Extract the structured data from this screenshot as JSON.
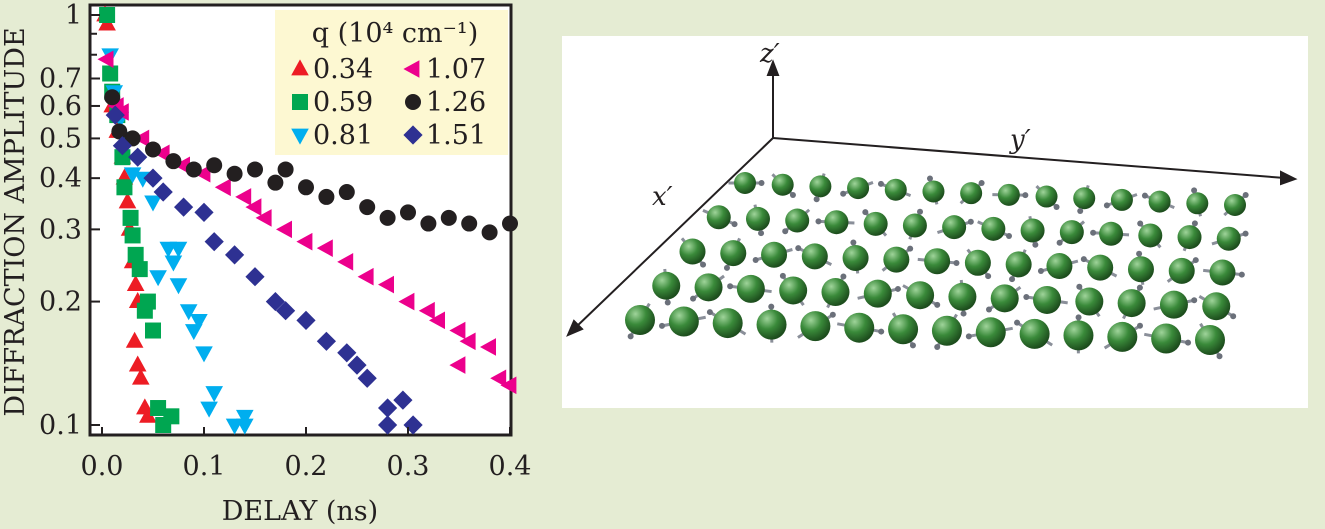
{
  "chart_data": {
    "type": "scatter",
    "xlabel": "DELAY (ns)",
    "ylabel": "DIFFRACTION AMPLITUDE",
    "xlim": [
      -0.008,
      0.405
    ],
    "ylim": [
      0.095,
      1.05
    ],
    "yscale": "log",
    "grid": false,
    "legend_placement": "top-right",
    "legend_title": "q (10⁴ cm⁻¹)",
    "x_ticks": [
      "0.0",
      "0.1",
      "0.2",
      "0.3",
      "0.4"
    ],
    "x_tick_values": [
      0,
      0.1,
      0.2,
      0.3,
      0.4
    ],
    "y_ticks": [
      "1",
      "0.7",
      "0.6",
      "0.5",
      "0.4",
      "0.3",
      "0.2",
      "0.1"
    ],
    "y_tick_values": [
      1,
      0.7,
      0.6,
      0.5,
      0.4,
      0.3,
      0.2,
      0.1
    ],
    "series": [
      {
        "name": "0.34",
        "marker": "triangle-up",
        "color": "#ed1c24",
        "x": [
          0.003,
          0.005,
          0.01,
          0.015,
          0.02,
          0.022,
          0.025,
          0.027,
          0.03,
          0.033,
          0.035,
          0.032,
          0.035,
          0.038,
          0.042,
          0.045
        ],
        "y": [
          1.0,
          0.95,
          0.6,
          0.52,
          0.45,
          0.4,
          0.35,
          0.3,
          0.25,
          0.22,
          0.2,
          0.16,
          0.14,
          0.13,
          0.11,
          0.105
        ]
      },
      {
        "name": "0.59",
        "marker": "square",
        "color": "#00a651",
        "x": [
          0.005,
          0.008,
          0.01,
          0.015,
          0.02,
          0.022,
          0.028,
          0.03,
          0.033,
          0.037,
          0.042,
          0.045,
          0.05,
          0.055,
          0.06,
          0.068
        ],
        "y": [
          1.0,
          0.72,
          0.65,
          0.57,
          0.45,
          0.38,
          0.32,
          0.29,
          0.26,
          0.24,
          0.19,
          0.2,
          0.17,
          0.11,
          0.1,
          0.105
        ]
      },
      {
        "name": "0.81",
        "marker": "triangle-down",
        "color": "#00aeef",
        "x": [
          0.008,
          0.012,
          0.018,
          0.025,
          0.03,
          0.04,
          0.05,
          0.065,
          0.075,
          0.07,
          0.055,
          0.075,
          0.085,
          0.095,
          0.09,
          0.1,
          0.11,
          0.105,
          0.14,
          0.13,
          0.14
        ],
        "y": [
          0.8,
          0.65,
          0.56,
          0.5,
          0.41,
          0.4,
          0.35,
          0.27,
          0.27,
          0.25,
          0.23,
          0.22,
          0.19,
          0.18,
          0.17,
          0.15,
          0.12,
          0.11,
          0.105,
          0.1,
          0.1
        ]
      },
      {
        "name": "1.07",
        "marker": "triangle-left",
        "color": "#ec008c",
        "x": [
          0.005,
          0.015,
          0.02,
          0.04,
          0.06,
          0.08,
          0.1,
          0.12,
          0.14,
          0.15,
          0.16,
          0.18,
          0.2,
          0.22,
          0.24,
          0.26,
          0.28,
          0.3,
          0.32,
          0.33,
          0.35,
          0.36,
          0.38,
          0.35,
          0.39,
          0.4
        ],
        "y": [
          0.78,
          0.6,
          0.58,
          0.5,
          0.46,
          0.43,
          0.41,
          0.38,
          0.36,
          0.34,
          0.32,
          0.3,
          0.28,
          0.27,
          0.25,
          0.23,
          0.22,
          0.2,
          0.19,
          0.18,
          0.17,
          0.16,
          0.155,
          0.14,
          0.13,
          0.125
        ]
      },
      {
        "name": "1.26",
        "marker": "circle",
        "color": "#231f20",
        "x": [
          0.01,
          0.017,
          0.03,
          0.05,
          0.07,
          0.09,
          0.11,
          0.13,
          0.15,
          0.17,
          0.18,
          0.2,
          0.22,
          0.24,
          0.26,
          0.28,
          0.3,
          0.32,
          0.34,
          0.36,
          0.38,
          0.4
        ],
        "y": [
          0.63,
          0.52,
          0.5,
          0.47,
          0.44,
          0.42,
          0.43,
          0.41,
          0.42,
          0.39,
          0.42,
          0.38,
          0.36,
          0.37,
          0.34,
          0.32,
          0.33,
          0.31,
          0.32,
          0.31,
          0.295,
          0.31
        ]
      },
      {
        "name": "1.51",
        "marker": "diamond",
        "color": "#2e3192",
        "x": [
          0.013,
          0.02,
          0.035,
          0.05,
          0.06,
          0.08,
          0.1,
          0.11,
          0.13,
          0.15,
          0.17,
          0.18,
          0.2,
          0.22,
          0.24,
          0.25,
          0.26,
          0.28,
          0.295,
          0.28,
          0.305
        ],
        "y": [
          0.57,
          0.48,
          0.45,
          0.4,
          0.37,
          0.34,
          0.33,
          0.28,
          0.26,
          0.23,
          0.2,
          0.19,
          0.18,
          0.16,
          0.15,
          0.14,
          0.13,
          0.11,
          0.115,
          0.1,
          0.1
        ]
      }
    ]
  },
  "diagram": {
    "axis_z": "z′",
    "axis_y": "y′",
    "axis_x": "x′",
    "sphere_color": "#3a8a3a"
  }
}
